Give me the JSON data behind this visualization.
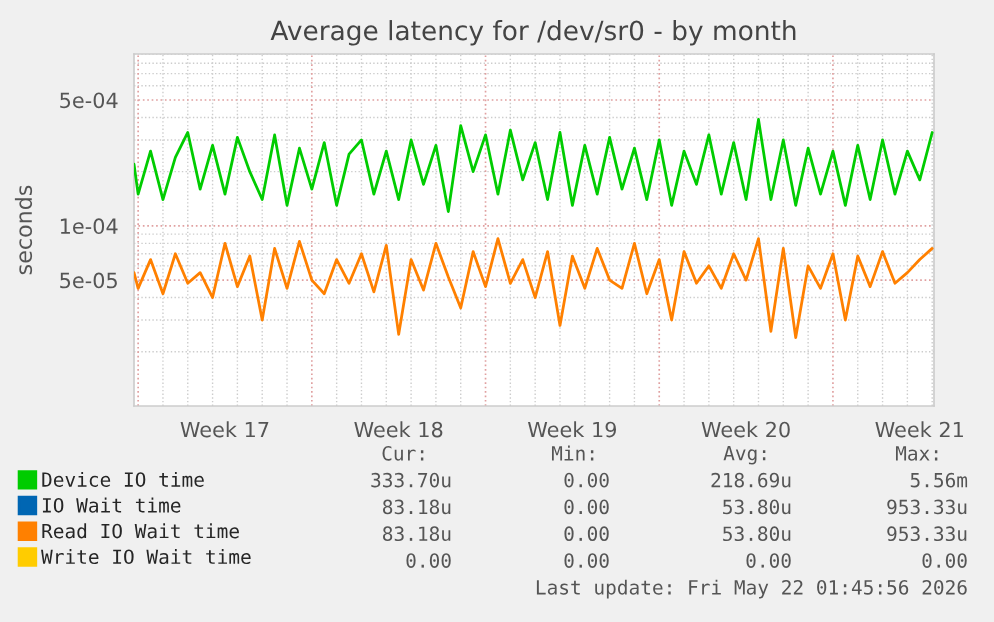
{
  "chart_data": {
    "type": "line",
    "title": "Average latency for /dev/sr0 - by month",
    "ylabel": "seconds",
    "log": "y",
    "grid": true,
    "legend": "bottom",
    "xlim": [
      "2026-04-19T20:00",
      "2026-05-22T01:45"
    ],
    "xticks": [
      {
        "value": "2026-04-20T00:00",
        "label": null
      },
      {
        "value": "2026-04-23T12:00",
        "label": "Week 17"
      },
      {
        "value": "2026-04-27T00:00",
        "label": null
      },
      {
        "value": "2026-04-30T12:00",
        "label": "Week 18"
      },
      {
        "value": "2026-05-04T00:00",
        "label": null
      },
      {
        "value": "2026-05-07T12:00",
        "label": "Week 19"
      },
      {
        "value": "2026-05-11T00:00",
        "label": null
      },
      {
        "value": "2026-05-14T12:00",
        "label": "Week 20"
      },
      {
        "value": "2026-05-18T00:00",
        "label": null
      },
      {
        "value": "2026-05-21T12:00",
        "label": "Week 21"
      }
    ],
    "ylim": [
      1e-05,
      0.0009
    ],
    "yticks": [
      {
        "value": 5e-05,
        "label": "5e-05"
      },
      {
        "value": 0.0001,
        "label": "1e-04"
      },
      {
        "value": 0.0005,
        "label": "5e-04"
      }
    ],
    "x": [
      "2026-04-19T20:00",
      "2026-04-20T00:00",
      "2026-04-20T12:00",
      "2026-04-21T00:00",
      "2026-04-21T12:00",
      "2026-04-22T00:00",
      "2026-04-22T12:00",
      "2026-04-23T00:00",
      "2026-04-23T12:00",
      "2026-04-24T00:00",
      "2026-04-24T12:00",
      "2026-04-25T00:00",
      "2026-04-25T12:00",
      "2026-04-26T00:00",
      "2026-04-26T12:00",
      "2026-04-27T00:00",
      "2026-04-27T12:00",
      "2026-04-28T00:00",
      "2026-04-28T12:00",
      "2026-04-29T00:00",
      "2026-04-29T12:00",
      "2026-04-30T00:00",
      "2026-04-30T12:00",
      "2026-05-01T00:00",
      "2026-05-01T12:00",
      "2026-05-02T00:00",
      "2026-05-02T12:00",
      "2026-05-03T00:00",
      "2026-05-03T12:00",
      "2026-05-04T00:00",
      "2026-05-04T12:00",
      "2026-05-05T00:00",
      "2026-05-05T12:00",
      "2026-05-06T00:00",
      "2026-05-06T12:00",
      "2026-05-07T00:00",
      "2026-05-07T12:00",
      "2026-05-08T00:00",
      "2026-05-08T12:00",
      "2026-05-09T00:00",
      "2026-05-09T12:00",
      "2026-05-10T00:00",
      "2026-05-10T12:00",
      "2026-05-11T00:00",
      "2026-05-11T12:00",
      "2026-05-12T00:00",
      "2026-05-12T12:00",
      "2026-05-13T00:00",
      "2026-05-13T12:00",
      "2026-05-14T00:00",
      "2026-05-14T12:00",
      "2026-05-15T00:00",
      "2026-05-15T12:00",
      "2026-05-16T00:00",
      "2026-05-16T12:00",
      "2026-05-17T00:00",
      "2026-05-17T12:00",
      "2026-05-18T00:00",
      "2026-05-18T12:00",
      "2026-05-19T00:00",
      "2026-05-19T12:00",
      "2026-05-20T00:00",
      "2026-05-20T12:00",
      "2026-05-21T00:00",
      "2026-05-21T12:00",
      "2026-05-22T00:00"
    ],
    "series": [
      {
        "name": "Device IO time",
        "color": "#00cc00",
        "values": [
          0.00022,
          0.00015,
          0.00026,
          0.00014,
          0.00024,
          0.00033,
          0.00016,
          0.00028,
          0.00015,
          0.00031,
          0.0002,
          0.00014,
          0.00032,
          0.00013,
          0.00027,
          0.00016,
          0.00029,
          0.00013,
          0.00025,
          0.0003,
          0.00015,
          0.00026,
          0.00014,
          0.0003,
          0.00017,
          0.00028,
          0.00012,
          0.00036,
          0.0002,
          0.00032,
          0.00015,
          0.00034,
          0.00018,
          0.00029,
          0.00014,
          0.00033,
          0.00013,
          0.00028,
          0.00015,
          0.00031,
          0.00016,
          0.00027,
          0.00014,
          0.0003,
          0.00013,
          0.00026,
          0.00017,
          0.00032,
          0.00015,
          0.00029,
          0.00014,
          0.00039,
          0.00014,
          0.0003,
          0.00013,
          0.00027,
          0.00015,
          0.00026,
          0.00013,
          0.00028,
          0.00014,
          0.0003,
          0.00015,
          0.00026,
          0.00018,
          0.00033
        ]
      },
      {
        "name": "IO Wait time",
        "color": "#0066b3",
        "values": [
          null,
          null,
          null,
          null,
          null,
          null,
          null,
          null,
          null,
          null,
          null,
          null,
          null,
          null,
          null,
          null,
          null,
          null,
          null,
          null,
          null,
          null,
          null,
          null,
          null,
          null,
          null,
          null,
          null,
          null,
          null,
          null,
          null,
          null,
          null,
          null,
          null,
          null,
          null,
          null,
          null,
          null,
          null,
          null,
          null,
          null,
          null,
          null,
          null,
          null,
          null,
          null,
          null,
          null,
          null,
          null,
          null,
          null,
          null,
          null,
          null,
          null,
          null,
          null,
          null,
          null
        ]
      },
      {
        "name": "Read IO Wait time",
        "color": "#ff8000",
        "values": [
          5.5e-05,
          4.5e-05,
          6.5e-05,
          4.2e-05,
          7e-05,
          4.8e-05,
          5.5e-05,
          4e-05,
          8e-05,
          4.6e-05,
          6.8e-05,
          3e-05,
          7.5e-05,
          4.5e-05,
          8.2e-05,
          5e-05,
          4.2e-05,
          6.5e-05,
          4.8e-05,
          7e-05,
          4.3e-05,
          7.8e-05,
          2.5e-05,
          6.5e-05,
          4.4e-05,
          8e-05,
          5.2e-05,
          3.5e-05,
          7.2e-05,
          4.6e-05,
          8.5e-05,
          4.8e-05,
          6.5e-05,
          4e-05,
          7.2e-05,
          2.8e-05,
          6.8e-05,
          4.5e-05,
          7.5e-05,
          5e-05,
          4.5e-05,
          8e-05,
          4.2e-05,
          6.5e-05,
          3e-05,
          7.2e-05,
          4.8e-05,
          6e-05,
          4.5e-05,
          7e-05,
          5e-05,
          8.5e-05,
          2.6e-05,
          7.5e-05,
          2.4e-05,
          6e-05,
          4.5e-05,
          7e-05,
          3e-05,
          6.8e-05,
          4.6e-05,
          7.2e-05,
          4.8e-05,
          5.5e-05,
          6.5e-05,
          7.5e-05
        ]
      },
      {
        "name": "Write IO Wait time",
        "color": "#ffcc00",
        "values": [
          null,
          null,
          null,
          null,
          null,
          null,
          null,
          null,
          null,
          null,
          null,
          null,
          null,
          null,
          null,
          null,
          null,
          null,
          null,
          null,
          null,
          null,
          null,
          null,
          null,
          null,
          null,
          null,
          null,
          null,
          null,
          null,
          null,
          null,
          null,
          null,
          null,
          null,
          null,
          null,
          null,
          null,
          null,
          null,
          null,
          null,
          null,
          null,
          null,
          null,
          null,
          null,
          null,
          null,
          null,
          null,
          null,
          null,
          null,
          null,
          null,
          null,
          null,
          null,
          null,
          null
        ]
      }
    ],
    "annotations": [
      "Cur:",
      "Min:",
      "Avg:",
      "Max:",
      "333.70u",
      "0.00",
      "218.69u",
      "5.56m",
      "83.18u",
      "0.00",
      "53.80u",
      "953.33u",
      "83.18u",
      "0.00",
      "53.80u",
      "953.33u",
      "0.00",
      "0.00",
      "0.00",
      "0.00",
      "Last update: Fri May 22 01:45:56 2026"
    ]
  }
}
